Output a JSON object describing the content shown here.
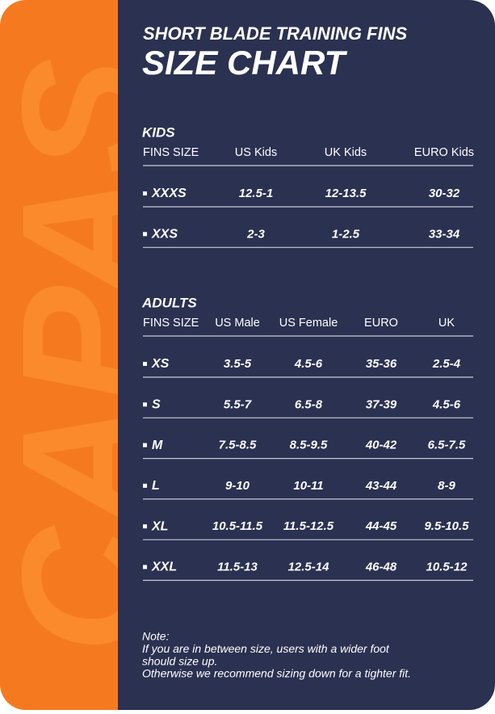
{
  "watermark": "CAPAS",
  "header": {
    "subtitle": "SHORT BLADE TRAINING FINS",
    "title": "SIZE CHART"
  },
  "kids": {
    "title": "KIDS",
    "headers": [
      "FINS SIZE",
      "US Kids",
      "UK Kids",
      "EURO Kids"
    ],
    "rows": [
      [
        "XXXS",
        "12.5-1",
        "12-13.5",
        "30-32"
      ],
      [
        "XXS",
        "2-3",
        "1-2.5",
        "33-34"
      ]
    ]
  },
  "adults": {
    "title": "ADULTS",
    "headers": [
      "FINS SIZE",
      "US Male",
      "US Female",
      "EURO",
      "UK"
    ],
    "rows": [
      [
        "XS",
        "3.5-5",
        "4.5-6",
        "35-36",
        "2.5-4"
      ],
      [
        "S",
        "5.5-7",
        "6.5-8",
        "37-39",
        "4.5-6"
      ],
      [
        "M",
        "7.5-8.5",
        "8.5-9.5",
        "40-42",
        "6.5-7.5"
      ],
      [
        "L",
        "9-10",
        "10-11",
        "43-44",
        "8-9"
      ],
      [
        "XL",
        "10.5-11.5",
        "11.5-12.5",
        "44-45",
        "9.5-10.5"
      ],
      [
        "XXL",
        "11.5-13",
        "12.5-14",
        "46-48",
        "10.5-12"
      ]
    ]
  },
  "note": [
    "Note:",
    "If you are in between size, users with a wider foot",
    "should size up.",
    "Otherwise we recommend sizing down for a tighter fit."
  ]
}
